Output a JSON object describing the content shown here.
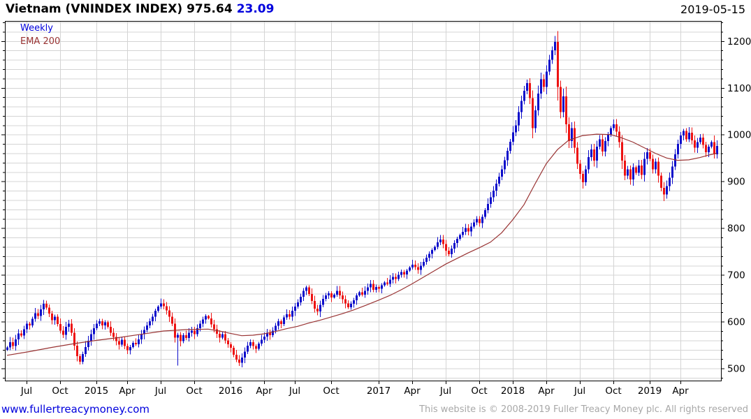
{
  "header": {
    "title": "Vietnam (VNINDEX INDEX) 975.64",
    "change": "23.09",
    "date": "2019-05-15"
  },
  "legend": {
    "timeframe": "Weekly",
    "overlay": "EMA 200"
  },
  "footer": {
    "site": "www.fullertreacymoney.com",
    "copyright": "This website is © 2008-2019 Fuller Treacy Money plc. All rights reserved"
  },
  "colors": {
    "up": "#0d0dcb",
    "down": "#ed1212",
    "ema": "#993333",
    "grid": "#d4d4d4",
    "axis": "#000000",
    "text_blue": "#0000dd"
  },
  "chart_data": {
    "type": "candlestick",
    "timeframe": "Weekly",
    "title": "Vietnam (VNINDEX INDEX)",
    "last_price": 975.64,
    "change": 23.09,
    "y_axis": {
      "side": "right",
      "min": 474,
      "max": 1243,
      "tick_interval": 100,
      "minor_interval": 20,
      "ticks": [
        500,
        600,
        700,
        800,
        900,
        1000,
        1100,
        1200
      ]
    },
    "x_ticks": [
      {
        "label": "Jul",
        "week": 7
      },
      {
        "label": "Oct",
        "week": 19
      },
      {
        "label": "2015",
        "week": 32
      },
      {
        "label": "Apr",
        "week": 43
      },
      {
        "label": "Jul",
        "week": 55
      },
      {
        "label": "Oct",
        "week": 67
      },
      {
        "label": "2016",
        "week": 80
      },
      {
        "label": "Apr",
        "week": 92
      },
      {
        "label": "Jul",
        "week": 103
      },
      {
        "label": "Oct",
        "week": 116
      },
      {
        "label": "2017",
        "week": 133
      },
      {
        "label": "Apr",
        "week": 145
      },
      {
        "label": "Jul",
        "week": 157
      },
      {
        "label": "Oct",
        "week": 169
      },
      {
        "label": "2018",
        "week": 181
      },
      {
        "label": "Apr",
        "week": 193
      },
      {
        "label": "Jul",
        "week": 205
      },
      {
        "label": "Oct",
        "week": 217
      },
      {
        "label": "2019",
        "week": 230
      },
      {
        "label": "Apr",
        "week": 241
      }
    ],
    "first_open": 540,
    "closes": [
      545,
      556,
      548,
      562,
      575,
      570,
      584,
      596,
      592,
      606,
      618,
      612,
      626,
      638,
      630,
      617,
      603,
      611,
      595,
      581,
      572,
      589,
      596,
      576,
      549,
      526,
      514,
      531,
      546,
      559,
      573,
      586,
      596,
      601,
      592,
      599,
      589,
      576,
      567,
      558,
      551,
      561,
      548,
      539,
      546,
      555,
      552,
      562,
      573,
      582,
      592,
      601,
      611,
      623,
      632,
      639,
      633,
      624,
      611,
      596,
      566,
      572,
      558,
      571,
      565,
      576,
      581,
      573,
      586,
      596,
      605,
      612,
      607,
      594,
      584,
      574,
      566,
      573,
      560,
      552,
      544,
      529,
      519,
      512,
      523,
      536,
      549,
      556,
      548,
      542,
      553,
      561,
      568,
      576,
      571,
      581,
      591,
      601,
      595,
      609,
      616,
      611,
      623,
      632,
      641,
      653,
      666,
      673,
      659,
      644,
      628,
      622,
      636,
      649,
      656,
      661,
      652,
      658,
      666,
      656,
      648,
      639,
      631,
      638,
      646,
      656,
      663,
      658,
      666,
      673,
      681,
      668,
      674,
      670,
      678,
      684,
      681,
      690,
      696,
      691,
      700,
      706,
      701,
      709,
      716,
      722,
      717,
      711,
      720,
      728,
      737,
      745,
      753,
      760,
      770,
      776,
      766,
      752,
      744,
      756,
      768,
      777,
      785,
      792,
      800,
      793,
      803,
      812,
      820,
      811,
      824,
      838,
      852,
      866,
      880,
      895,
      910,
      926,
      945,
      965,
      985,
      1005,
      1020,
      1048,
      1072,
      1094,
      1110,
      1078,
      1014,
      1052,
      1088,
      1118,
      1102,
      1135,
      1160,
      1180,
      1198,
      1102,
      1048,
      1082,
      1022,
      986,
      1014,
      972,
      938,
      916,
      898,
      926,
      952,
      968,
      944,
      974,
      990,
      964,
      986,
      1000,
      1014,
      1022,
      1006,
      984,
      944,
      912,
      926,
      904,
      930,
      918,
      934,
      914,
      948,
      962,
      948,
      926,
      942,
      912,
      886,
      872,
      890,
      908,
      932,
      958,
      980,
      998,
      1008,
      990,
      1004,
      988,
      972,
      984,
      994,
      978,
      962,
      974,
      984,
      958,
      975.64
    ],
    "wick_overrides": {
      "26": {
        "low": 508
      },
      "61": {
        "low": 506
      },
      "83": {
        "low": 505
      },
      "196": {
        "high": 1211
      },
      "206": {
        "low": 885
      },
      "235": {
        "low": 858
      }
    },
    "ema200_anchors": [
      [
        0,
        528
      ],
      [
        8,
        536
      ],
      [
        16,
        545
      ],
      [
        24,
        553
      ],
      [
        32,
        560
      ],
      [
        40,
        566
      ],
      [
        48,
        573
      ],
      [
        56,
        580
      ],
      [
        64,
        583
      ],
      [
        72,
        584
      ],
      [
        76,
        580
      ],
      [
        80,
        575
      ],
      [
        84,
        570
      ],
      [
        88,
        571
      ],
      [
        92,
        574
      ],
      [
        96,
        579
      ],
      [
        100,
        585
      ],
      [
        104,
        590
      ],
      [
        108,
        597
      ],
      [
        112,
        603
      ],
      [
        116,
        610
      ],
      [
        120,
        617
      ],
      [
        124,
        625
      ],
      [
        128,
        634
      ],
      [
        133,
        646
      ],
      [
        137,
        656
      ],
      [
        141,
        668
      ],
      [
        145,
        681
      ],
      [
        149,
        695
      ],
      [
        153,
        709
      ],
      [
        157,
        723
      ],
      [
        161,
        735
      ],
      [
        165,
        747
      ],
      [
        169,
        758
      ],
      [
        173,
        770
      ],
      [
        177,
        790
      ],
      [
        181,
        818
      ],
      [
        185,
        850
      ],
      [
        189,
        895
      ],
      [
        193,
        938
      ],
      [
        197,
        968
      ],
      [
        201,
        988
      ],
      [
        206,
        998
      ],
      [
        211,
        1001
      ],
      [
        216,
        1000
      ],
      [
        220,
        993
      ],
      [
        224,
        984
      ],
      [
        228,
        972
      ],
      [
        232,
        960
      ],
      [
        236,
        950
      ],
      [
        240,
        945
      ],
      [
        244,
        946
      ],
      [
        248,
        951
      ],
      [
        251,
        956
      ],
      [
        254,
        960
      ]
    ]
  }
}
